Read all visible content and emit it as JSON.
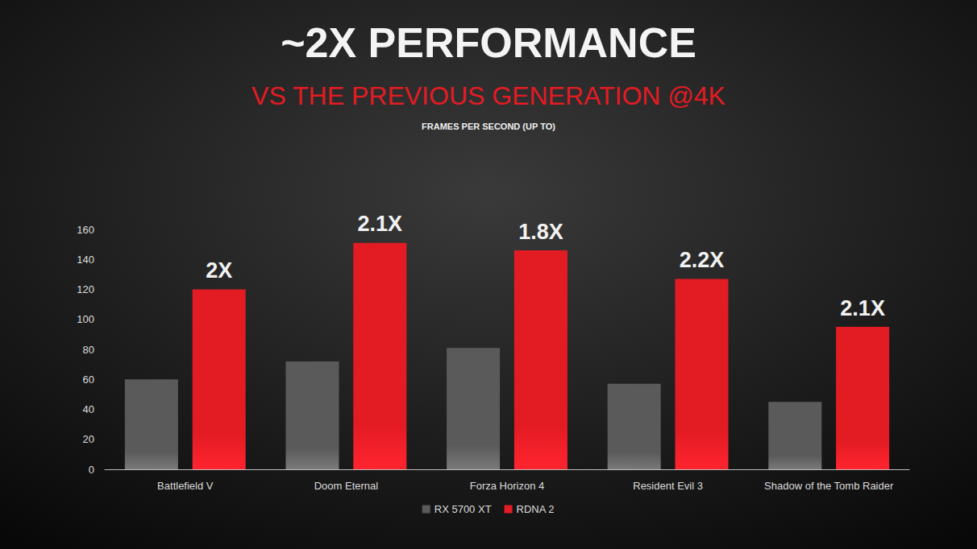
{
  "chart_data": {
    "type": "bar",
    "title": "~2X PERFORMANCE",
    "subtitle": "VS THE PREVIOUS GENERATION @4K",
    "y_label": "FRAMES PER SECOND (UP TO)",
    "categories": [
      "Battlefield V",
      "Doom Eternal",
      "Forza Horizon 4",
      "Resident Evil 3",
      "Shadow of the Tomb Raider"
    ],
    "series": [
      {
        "name": "RX 5700 XT",
        "color": "#5a5a5a",
        "values": [
          60,
          72,
          81,
          57,
          45
        ]
      },
      {
        "name": "RDNA 2",
        "color": "#e31b23",
        "values": [
          120,
          151,
          146,
          127,
          95
        ],
        "annotations": [
          "2X",
          "2.1X",
          "1.8X",
          "2.2X",
          "2.1X"
        ]
      }
    ],
    "ylim": [
      0,
      160
    ],
    "yticks": [
      0,
      20,
      40,
      60,
      80,
      100,
      120,
      140,
      160
    ],
    "grid": false,
    "legend": "bottom"
  }
}
